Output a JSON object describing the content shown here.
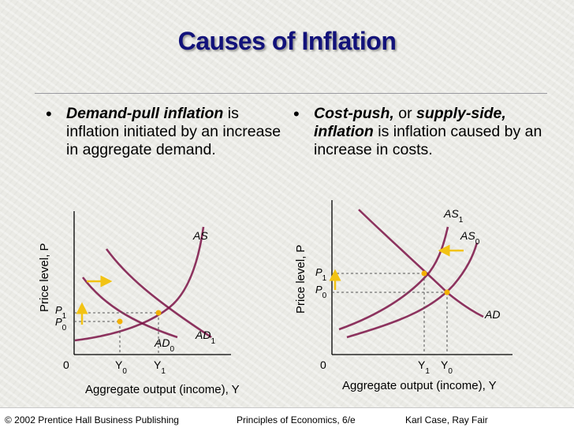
{
  "title": "Causes of Inflation",
  "bullets": {
    "left": {
      "marker": "•",
      "term": "Demand-pull inflation",
      "rest": " is inflation initiated by an increase in aggregate demand."
    },
    "right": {
      "marker": "•",
      "term1": "Cost-push,",
      "connector": " or ",
      "term2": "supply-side, inflation",
      "rest": " is inflation caused by an increase in costs."
    }
  },
  "charts": {
    "left": {
      "ylabel": "Price level, P",
      "xlabel": "Aggregate output (income), Y",
      "origin": "0",
      "curves": {
        "as": "AS",
        "ad0": "AD0",
        "ad1": "AD1"
      },
      "price_ticks": [
        "P1",
        "P0"
      ],
      "output_ticks": [
        "Y0",
        "Y1"
      ]
    },
    "right": {
      "ylabel": "Price level, P",
      "xlabel": "Aggregate output (income), Y",
      "origin": "0",
      "curves": {
        "as0": "AS0",
        "as1": "AS1",
        "ad": "AD"
      },
      "price_ticks": [
        "P1",
        "P0"
      ],
      "output_ticks": [
        "Y1",
        "Y0"
      ]
    }
  },
  "colors": {
    "curve": "#7b1245",
    "arrow": "#f2c314",
    "point": "#f2b000",
    "title": "#12127a"
  },
  "footer": {
    "copyright": "© 2002 Prentice Hall Business Publishing",
    "book": "Principles of Economics, 6/e",
    "authors": "Karl Case, Ray Fair"
  }
}
